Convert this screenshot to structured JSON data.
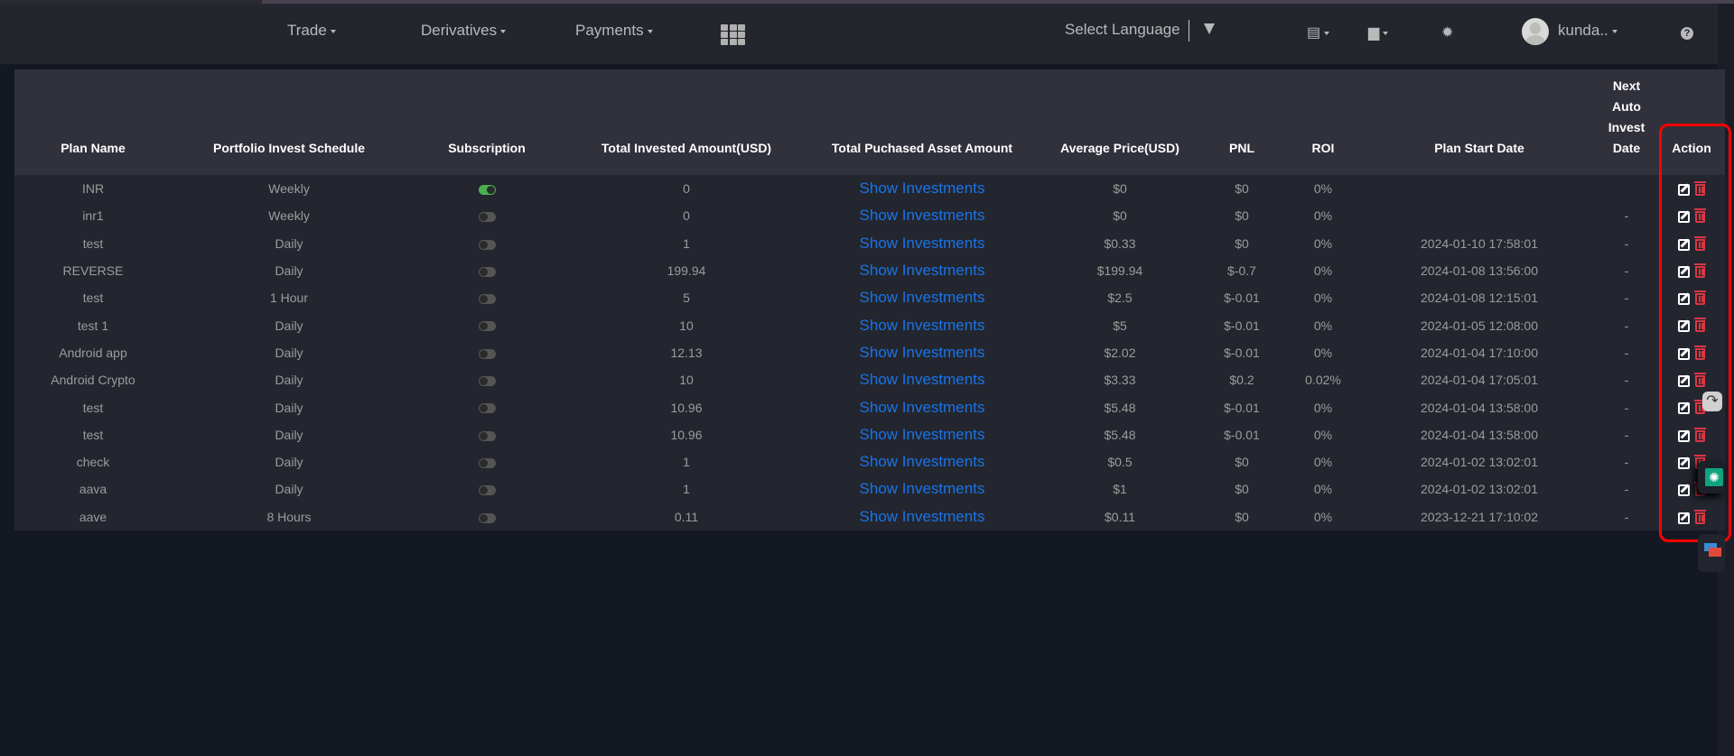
{
  "nav": {
    "items": [
      {
        "label": "Trade"
      },
      {
        "label": "Derivatives"
      },
      {
        "label": "Payments"
      }
    ],
    "apps_icon": "grid-icon",
    "language_label": "Select Language",
    "book_icon": "book-icon",
    "wallet_icon": "wallet-icon",
    "settings_icon": "gear-icon",
    "user_name": "kunda..",
    "help_icon": "question-icon",
    "help_glyph": "?"
  },
  "table": {
    "headers": [
      "Plan Name",
      "Portfolio Invest Schedule",
      "Subscription",
      "Total Invested Amount(USD)",
      "Total Puchased Asset Amount",
      "Average Price(USD)",
      "PNL",
      "ROI",
      "Plan Start Date",
      "Next Auto Invest Date",
      "Action"
    ],
    "link_label": "Show Investments",
    "rows": [
      {
        "name": "INR",
        "schedule": "Weekly",
        "subscribed": true,
        "invested": "0",
        "avg": "$0",
        "pnl": "$0",
        "roi": "0%",
        "start": "",
        "next": ""
      },
      {
        "name": "inr1",
        "schedule": "Weekly",
        "subscribed": false,
        "invested": "0",
        "avg": "$0",
        "pnl": "$0",
        "roi": "0%",
        "start": "",
        "next": "-"
      },
      {
        "name": "test",
        "schedule": "Daily",
        "subscribed": false,
        "invested": "1",
        "avg": "$0.33",
        "pnl": "$0",
        "roi": "0%",
        "start": "2024-01-10 17:58:01",
        "next": "-"
      },
      {
        "name": "REVERSE",
        "schedule": "Daily",
        "subscribed": false,
        "invested": "199.94",
        "avg": "$199.94",
        "pnl": "$-0.7",
        "roi": "0%",
        "start": "2024-01-08 13:56:00",
        "next": "-"
      },
      {
        "name": "test",
        "schedule": "1 Hour",
        "subscribed": false,
        "invested": "5",
        "avg": "$2.5",
        "pnl": "$-0.01",
        "roi": "0%",
        "start": "2024-01-08 12:15:01",
        "next": "-"
      },
      {
        "name": "test 1",
        "schedule": "Daily",
        "subscribed": false,
        "invested": "10",
        "avg": "$5",
        "pnl": "$-0.01",
        "roi": "0%",
        "start": "2024-01-05 12:08:00",
        "next": "-"
      },
      {
        "name": "Android app",
        "schedule": "Daily",
        "subscribed": false,
        "invested": "12.13",
        "avg": "$2.02",
        "pnl": "$-0.01",
        "roi": "0%",
        "start": "2024-01-04 17:10:00",
        "next": "-"
      },
      {
        "name": "Android Crypto",
        "schedule": "Daily",
        "subscribed": false,
        "invested": "10",
        "avg": "$3.33",
        "pnl": "$0.2",
        "roi": "0.02%",
        "start": "2024-01-04 17:05:01",
        "next": "-"
      },
      {
        "name": "test",
        "schedule": "Daily",
        "subscribed": false,
        "invested": "10.96",
        "avg": "$5.48",
        "pnl": "$-0.01",
        "roi": "0%",
        "start": "2024-01-04 13:58:00",
        "next": "-"
      },
      {
        "name": "test",
        "schedule": "Daily",
        "subscribed": false,
        "invested": "10.96",
        "avg": "$5.48",
        "pnl": "$-0.01",
        "roi": "0%",
        "start": "2024-01-04 13:58:00",
        "next": "-"
      },
      {
        "name": "check",
        "schedule": "Daily",
        "subscribed": false,
        "invested": "1",
        "avg": "$0.5",
        "pnl": "$0",
        "roi": "0%",
        "start": "2024-01-02 13:02:01",
        "next": "-"
      },
      {
        "name": "aava",
        "schedule": "Daily",
        "subscribed": false,
        "invested": "1",
        "avg": "$1",
        "pnl": "$0",
        "roi": "0%",
        "start": "2024-01-02 13:02:01",
        "next": "-"
      },
      {
        "name": "aave",
        "schedule": "8 Hours",
        "subscribed": false,
        "invested": "0.11",
        "avg": "$0.11",
        "pnl": "$0",
        "roi": "0%",
        "start": "2023-12-21 17:10:02",
        "next": "-"
      }
    ]
  },
  "colors": {
    "background": "#141822",
    "navbar": "#24262e",
    "table_header": "#30313b",
    "table_body": "#23262e",
    "link": "#1a73e8",
    "toggle_on": "#4caf50",
    "delete": "#dc3545",
    "highlight": "#ff0000"
  },
  "widgets": {
    "share_icon": "share-arrow-icon",
    "share_glyph": "↷",
    "chatgpt_icon": "chatgpt-icon",
    "chatgpt_glyph": "✺",
    "chat_icon": "chat-bubbles-icon"
  }
}
